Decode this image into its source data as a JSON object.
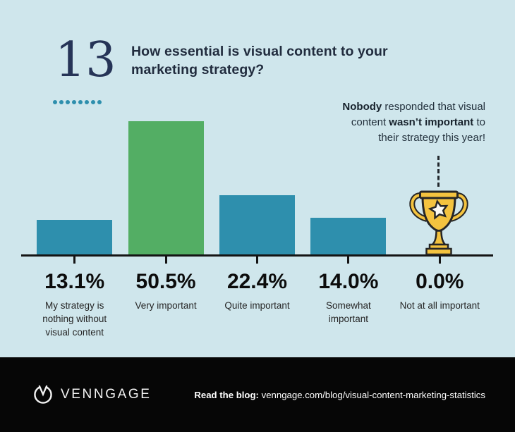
{
  "header": {
    "question_number": "13",
    "title": "How essential is visual content to your marketing strategy?"
  },
  "annotation": {
    "lines": [
      [
        {
          "text": "Nobody",
          "bold": true
        },
        {
          "text": " responded that visual",
          "bold": false
        }
      ],
      [
        {
          "text": "content ",
          "bold": false
        },
        {
          "text": "wasn’t important",
          "bold": true
        },
        {
          "text": " to",
          "bold": false
        }
      ],
      [
        {
          "text": "their strategy this year!",
          "bold": false
        }
      ]
    ]
  },
  "chart_data": {
    "type": "bar",
    "title": "How essential is visual content to your marketing strategy?",
    "categories": [
      "My strategy is nothing without visual content",
      "Very important",
      "Quite important",
      "Somewhat important",
      "Not at all important"
    ],
    "values": [
      13.1,
      50.5,
      22.4,
      14.0,
      0.0
    ],
    "value_labels": [
      "13.1%",
      "50.5%",
      "22.4%",
      "14.0%",
      "0.0%"
    ],
    "bar_colors": [
      "#2e8fad",
      "#53ae64",
      "#2e8fad",
      "#2e8fad",
      null
    ],
    "ylim": [
      0,
      50.5
    ],
    "grid": false,
    "legend": false,
    "zero_value_marker": "trophy-icon"
  },
  "footer": {
    "brand": "VENNGAGE",
    "blog_label": "Read the blog:",
    "blog_url": "venngage.com/blog/visual-content-marketing-statistics"
  },
  "colors": {
    "background": "#cfe6ec",
    "number_navy": "#263457",
    "dot_teal": "#2e8fad",
    "bar_blue": "#2e8fad",
    "bar_green": "#53ae64",
    "axis_black": "#141414",
    "trophy_gold": "#f4c33f",
    "footer_black": "#060606"
  }
}
